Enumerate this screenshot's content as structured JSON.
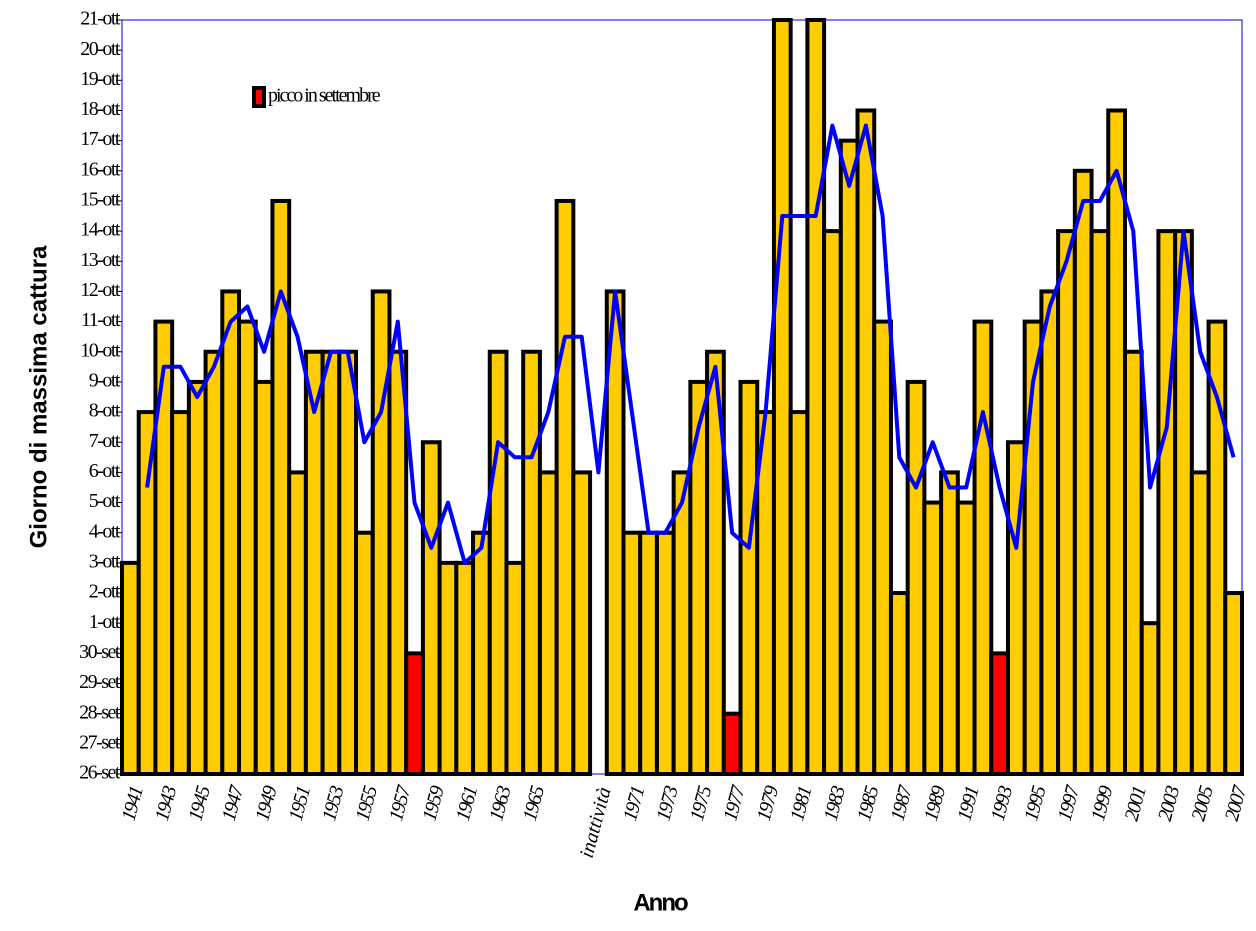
{
  "chart_data": {
    "type": "bar",
    "y_title": "Giorno di massima cattura",
    "x_title": "Anno",
    "categories": [
      "1941",
      null,
      "1943",
      null,
      "1945",
      null,
      "1947",
      null,
      "1949",
      null,
      "1951",
      null,
      "1953",
      null,
      "1955",
      null,
      "1957",
      null,
      "1959",
      null,
      "1961",
      null,
      "1963",
      null,
      "1965",
      null,
      null,
      null,
      "inattività",
      null,
      "1971",
      null,
      "1973",
      null,
      "1975",
      null,
      "1977",
      null,
      "1979",
      null,
      "1981",
      null,
      "1983",
      null,
      "1985",
      null,
      "1987",
      null,
      "1989",
      null,
      "1991",
      null,
      "1993",
      null,
      "1995",
      null,
      "1997",
      null,
      "1999",
      null,
      "2001",
      null,
      "2003",
      null,
      "2005",
      null,
      "2007"
    ],
    "series": [
      {
        "color": "#ffcc00",
        "values": [
          7,
          12,
          15,
          12,
          13,
          14,
          16,
          15,
          13,
          19,
          10,
          14,
          14,
          14,
          8,
          16,
          14,
          null,
          11,
          7,
          7,
          8,
          14,
          7,
          14,
          10,
          19,
          10,
          null,
          16,
          8,
          8,
          8,
          10,
          13,
          14,
          null,
          13,
          12,
          25,
          12,
          25,
          18,
          21,
          22,
          15,
          6,
          13,
          9,
          10,
          9,
          15,
          null,
          11,
          15,
          16,
          18,
          20,
          18,
          22,
          14,
          5,
          18,
          18,
          10,
          15,
          6
        ]
      },
      {
        "name": "picco in settembre",
        "color": "#ff0000",
        "values": [
          null,
          null,
          null,
          null,
          null,
          null,
          null,
          null,
          null,
          null,
          null,
          null,
          null,
          null,
          null,
          null,
          null,
          4,
          null,
          null,
          null,
          null,
          null,
          null,
          null,
          null,
          null,
          null,
          null,
          null,
          null,
          null,
          null,
          null,
          null,
          null,
          2,
          null,
          null,
          null,
          null,
          null,
          null,
          null,
          null,
          null,
          null,
          null,
          null,
          null,
          null,
          null,
          4,
          null,
          null,
          null,
          null,
          null,
          null,
          null,
          null,
          null,
          null,
          null,
          null,
          null,
          null
        ]
      },
      {
        "type": "line",
        "color": "#0000ff",
        "values": [
          null,
          9.5,
          13.5,
          13.5,
          12.5,
          13.5,
          15,
          15.5,
          14,
          16,
          14.5,
          12,
          14,
          14,
          11,
          12,
          15,
          9,
          7.5,
          9,
          7,
          7.5,
          11,
          10.5,
          10.5,
          12,
          14.5,
          14.5,
          10,
          16,
          12,
          8,
          8,
          9,
          11.5,
          13.5,
          8,
          7.5,
          12,
          18.5,
          18.5,
          18.5,
          21.5,
          19.5,
          21.5,
          18.5,
          10.5,
          9.5,
          11,
          9.5,
          9.5,
          12,
          9.5,
          7.5,
          13,
          15.5,
          17,
          19,
          19,
          20,
          18,
          9.5,
          11.5,
          18,
          14,
          12.5,
          10.5
        ]
      }
    ],
    "ylim": [
      0,
      25
    ],
    "yticks": [
      {
        "value": 0,
        "label": "26-set"
      },
      {
        "value": 1,
        "label": "27-set"
      },
      {
        "value": 2,
        "label": "28-set"
      },
      {
        "value": 3,
        "label": "29-set"
      },
      {
        "value": 4,
        "label": "30-set"
      },
      {
        "value": 5,
        "label": "1-ott"
      },
      {
        "value": 6,
        "label": "2-ott"
      },
      {
        "value": 7,
        "label": "3-ott"
      },
      {
        "value": 8,
        "label": "4-ott"
      },
      {
        "value": 9,
        "label": "5-ott"
      },
      {
        "value": 10,
        "label": "6-ott"
      },
      {
        "value": 11,
        "label": "7-ott"
      },
      {
        "value": 12,
        "label": "8-ott"
      },
      {
        "value": 13,
        "label": "9-ott"
      },
      {
        "value": 14,
        "label": "10-ott"
      },
      {
        "value": 15,
        "label": "11-ott"
      },
      {
        "value": 16,
        "label": "12-ott"
      },
      {
        "value": 17,
        "label": "13-ott"
      },
      {
        "value": 18,
        "label": "14-ott"
      },
      {
        "value": 19,
        "label": "15-ott"
      },
      {
        "value": 20,
        "label": "16-ott"
      },
      {
        "value": 21,
        "label": "17-ott"
      },
      {
        "value": 22,
        "label": "18-ott"
      },
      {
        "value": 23,
        "label": "19-ott"
      },
      {
        "value": 24,
        "label": "20-ott"
      },
      {
        "value": 25,
        "label": "21-ott"
      }
    ],
    "grid": false,
    "legend": "top-left"
  }
}
